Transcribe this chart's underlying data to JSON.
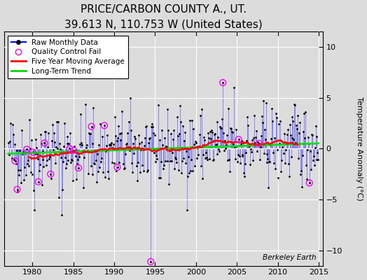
{
  "title": "PRICE/CARBON COUNTY A., UT.",
  "subtitle": "39.613 N, 110.753 W (United States)",
  "ylabel": "Temperature Anomaly (°C)",
  "xlabel": "",
  "xlim": [
    1976.5,
    2015.5
  ],
  "ylim": [
    -11.5,
    11.5
  ],
  "yticks": [
    -10,
    -5,
    0,
    5,
    10
  ],
  "xticks": [
    1980,
    1985,
    1990,
    1995,
    2000,
    2005,
    2010,
    2015
  ],
  "background_color": "#dcdcdc",
  "watermark": "Berkeley Earth",
  "title_fontsize": 11,
  "subtitle_fontsize": 9,
  "legend_labels": [
    "Raw Monthly Data",
    "Quality Control Fail",
    "Five Year Moving Average",
    "Long-Term Trend"
  ]
}
